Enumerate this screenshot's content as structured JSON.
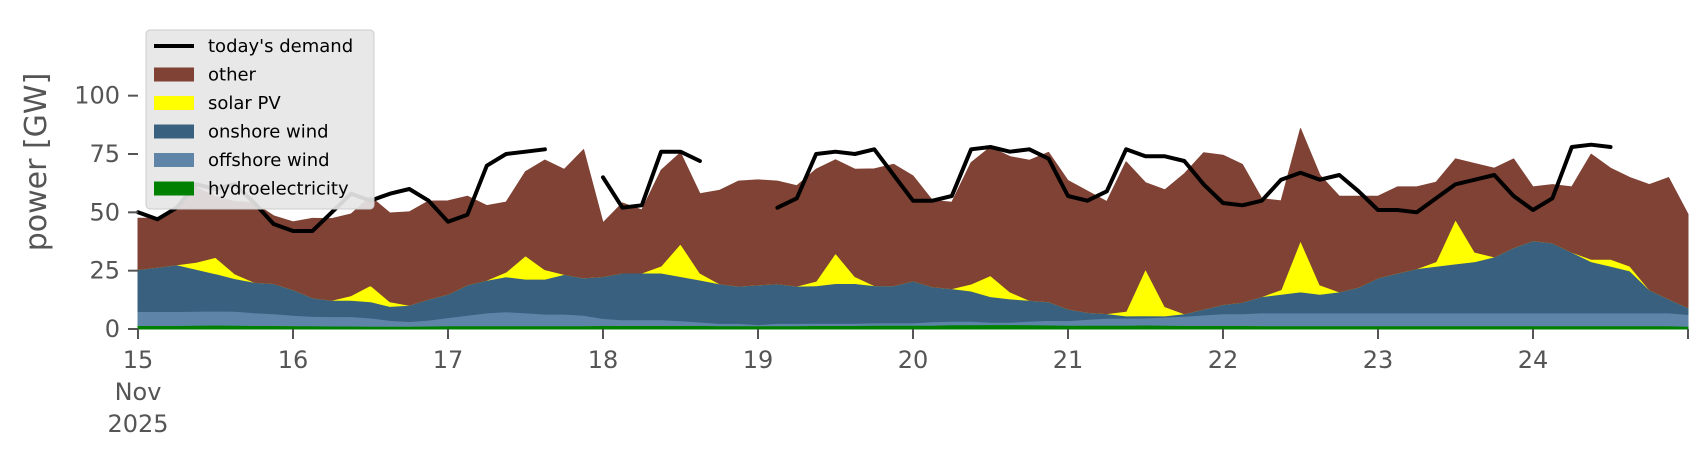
{
  "chart_data": {
    "type": "area",
    "ylabel": "power [GW]",
    "xlabel": "",
    "ylim": [
      0,
      120
    ],
    "yticks": [
      0,
      25,
      50,
      75,
      100
    ],
    "xlim": [
      "2025-11-15",
      "2025-11-25"
    ],
    "xticks": [
      {
        "date": "2025-11-15",
        "lines": [
          "15",
          "Nov",
          "2025"
        ]
      },
      {
        "date": "2025-11-16",
        "lines": [
          "16"
        ]
      },
      {
        "date": "2025-11-17",
        "lines": [
          "17"
        ]
      },
      {
        "date": "2025-11-18",
        "lines": [
          "18"
        ]
      },
      {
        "date": "2025-11-19",
        "lines": [
          "19"
        ]
      },
      {
        "date": "2025-11-20",
        "lines": [
          "20"
        ]
      },
      {
        "date": "2025-11-21",
        "lines": [
          "21"
        ]
      },
      {
        "date": "2025-11-22",
        "lines": [
          "22"
        ]
      },
      {
        "date": "2025-11-23",
        "lines": [
          "23"
        ]
      },
      {
        "date": "2025-11-24",
        "lines": [
          "24"
        ]
      }
    ],
    "grid": false,
    "legend_position": "top-left",
    "colors": {
      "demand": "#000000",
      "other": "#7f4234",
      "solar": "#ffff00",
      "onshore": "#3a6080",
      "offshore": "#5e85a8",
      "hydro": "#008000"
    },
    "legend": [
      {
        "key": "demand",
        "label": "today's demand",
        "kind": "line"
      },
      {
        "key": "other",
        "label": "other",
        "kind": "patch"
      },
      {
        "key": "solar",
        "label": "solar PV",
        "kind": "patch"
      },
      {
        "key": "onshore",
        "label": "onshore wind",
        "kind": "patch"
      },
      {
        "key": "offshore",
        "label": "offshore wind",
        "kind": "patch"
      },
      {
        "key": "hydro",
        "label": "hydroelectricity",
        "kind": "patch"
      }
    ],
    "stack_order": [
      "hydro",
      "offshore",
      "onshore",
      "solar",
      "other"
    ],
    "x": [
      "2025-11-15 00:00",
      "2025-11-15 03:00",
      "2025-11-15 06:00",
      "2025-11-15 09:00",
      "2025-11-15 12:00",
      "2025-11-15 15:00",
      "2025-11-15 18:00",
      "2025-11-15 21:00",
      "2025-11-16 00:00",
      "2025-11-16 03:00",
      "2025-11-16 06:00",
      "2025-11-16 09:00",
      "2025-11-16 12:00",
      "2025-11-16 15:00",
      "2025-11-16 18:00",
      "2025-11-16 21:00",
      "2025-11-17 00:00",
      "2025-11-17 03:00",
      "2025-11-17 06:00",
      "2025-11-17 09:00",
      "2025-11-17 12:00",
      "2025-11-17 15:00",
      "2025-11-17 18:00",
      "2025-11-17 21:00",
      "2025-11-18 00:00",
      "2025-11-18 03:00",
      "2025-11-18 06:00",
      "2025-11-18 09:00",
      "2025-11-18 12:00",
      "2025-11-18 15:00",
      "2025-11-18 18:00",
      "2025-11-18 21:00",
      "2025-11-19 00:00",
      "2025-11-19 03:00",
      "2025-11-19 06:00",
      "2025-11-19 09:00",
      "2025-11-19 12:00",
      "2025-11-19 15:00",
      "2025-11-19 18:00",
      "2025-11-19 21:00",
      "2025-11-20 00:00",
      "2025-11-20 03:00",
      "2025-11-20 06:00",
      "2025-11-20 09:00",
      "2025-11-20 12:00",
      "2025-11-20 15:00",
      "2025-11-20 18:00",
      "2025-11-20 21:00",
      "2025-11-21 00:00",
      "2025-11-21 03:00",
      "2025-11-21 06:00",
      "2025-11-21 09:00",
      "2025-11-21 12:00",
      "2025-11-21 15:00",
      "2025-11-21 18:00",
      "2025-11-21 21:00",
      "2025-11-22 00:00",
      "2025-11-22 03:00",
      "2025-11-22 06:00",
      "2025-11-22 09:00",
      "2025-11-22 12:00",
      "2025-11-22 15:00",
      "2025-11-22 18:00",
      "2025-11-22 21:00",
      "2025-11-23 00:00",
      "2025-11-23 03:00",
      "2025-11-23 06:00",
      "2025-11-23 09:00",
      "2025-11-23 12:00",
      "2025-11-23 15:00",
      "2025-11-23 18:00",
      "2025-11-23 21:00",
      "2025-11-24 00:00",
      "2025-11-24 03:00",
      "2025-11-24 06:00",
      "2025-11-24 09:00",
      "2025-11-24 12:00",
      "2025-11-24 15:00",
      "2025-11-24 18:00",
      "2025-11-24 21:00",
      "2025-11-25 00:00"
    ],
    "series": {
      "hydro": [
        1.5,
        1.5,
        1.5,
        1.6,
        1.7,
        1.6,
        1.5,
        1.5,
        1.4,
        1.4,
        1.3,
        1.3,
        1.2,
        1.2,
        1.2,
        1.3,
        1.4,
        1.4,
        1.4,
        1.4,
        1.4,
        1.4,
        1.4,
        1.4,
        1.5,
        1.5,
        1.5,
        1.5,
        1.5,
        1.5,
        1.4,
        1.4,
        1.4,
        1.4,
        1.4,
        1.5,
        1.5,
        1.5,
        1.6,
        1.6,
        1.6,
        1.6,
        1.8,
        1.8,
        1.9,
        1.9,
        1.8,
        1.7,
        1.6,
        1.6,
        1.6,
        1.6,
        1.7,
        1.6,
        1.5,
        1.5,
        1.5,
        1.5,
        1.4,
        1.4,
        1.4,
        1.4,
        1.4,
        1.4,
        1.4,
        1.4,
        1.4,
        1.4,
        1.4,
        1.4,
        1.4,
        1.4,
        1.4,
        1.4,
        1.4,
        1.4,
        1.4,
        1.4,
        1.4,
        1.4,
        1.2
      ],
      "offshore": [
        6,
        6,
        6,
        6,
        6,
        6,
        5.5,
        5,
        4.5,
        4,
        4,
        4,
        3.5,
        2.5,
        2,
        2.5,
        3.5,
        4.5,
        5.5,
        6,
        5.5,
        5,
        5,
        4.5,
        3,
        2.5,
        2.5,
        2.5,
        2,
        1.5,
        1,
        1,
        0.5,
        1,
        1,
        1,
        1,
        1,
        1,
        1,
        1,
        1.5,
        1.5,
        1.5,
        1,
        1,
        1.5,
        2,
        2,
        2.5,
        3,
        3,
        3,
        3.5,
        4,
        4.5,
        5,
        5,
        5.5,
        5.5,
        5.5,
        5.5,
        5.5,
        5.5,
        5.5,
        5.5,
        5.5,
        5.5,
        5.5,
        5.5,
        5.5,
        5.5,
        5.5,
        5.5,
        5.5,
        5.5,
        5.5,
        5.5,
        5.5,
        5.5,
        5
      ],
      "onshore": [
        18,
        19,
        20,
        18,
        16,
        14,
        13,
        13,
        11,
        8,
        7,
        7,
        7,
        6,
        7,
        9,
        10,
        13,
        14,
        15,
        14.5,
        15,
        17,
        16,
        18,
        20,
        20,
        20,
        19,
        18,
        17,
        16,
        17,
        17,
        16,
        16,
        17,
        17,
        16,
        16,
        18,
        15,
        14,
        13,
        11,
        10,
        9,
        8,
        5,
        3,
        2,
        1,
        1,
        0.5,
        1,
        2.5,
        4,
        5,
        7,
        8,
        9,
        8,
        9,
        11,
        15,
        17,
        19,
        20,
        21,
        22,
        24,
        28,
        31,
        30,
        26,
        22,
        20,
        18,
        10,
        6,
        3
      ],
      "solar": [
        0,
        0,
        0,
        3,
        7,
        2,
        0,
        0,
        0,
        0,
        0,
        2,
        7,
        2,
        0,
        0,
        0,
        0,
        0,
        2,
        10,
        4,
        0,
        0,
        0,
        0,
        0,
        3,
        14,
        3,
        0,
        0,
        0,
        0,
        0,
        2,
        13,
        3,
        0,
        0,
        0,
        0,
        0,
        3,
        9,
        3,
        0,
        0,
        0,
        0,
        0,
        2,
        20,
        4,
        0,
        0,
        0,
        0,
        0,
        2,
        22,
        4,
        0,
        0,
        0,
        0,
        0,
        2,
        19,
        4,
        0,
        0,
        0,
        0,
        0,
        1,
        3,
        2,
        0,
        0,
        0
      ],
      "other": [
        22,
        21,
        24,
        32,
        26,
        31,
        34,
        29,
        29,
        34,
        35,
        35,
        38,
        38,
        40,
        42,
        40,
        38,
        32,
        30,
        36,
        47,
        45,
        55,
        23,
        30,
        27,
        41,
        39,
        34,
        40,
        45,
        45,
        44,
        43,
        48,
        40,
        46,
        50,
        52,
        45,
        37,
        37,
        52,
        55,
        58,
        60,
        64,
        55,
        52,
        48,
        64,
        37,
        50,
        60,
        67,
        64,
        59,
        42,
        38,
        48,
        47,
        41,
        39,
        35,
        37,
        35,
        34,
        26,
        38,
        38,
        38,
        23,
        25,
        28,
        45,
        39,
        38,
        45,
        52,
        40
      ],
      "demand": [
        50,
        47,
        52,
        62,
        60,
        62,
        54,
        45,
        42,
        42,
        50,
        58,
        55,
        58,
        60,
        55,
        46,
        49,
        70,
        75,
        76,
        77,
        null,
        null,
        65,
        52,
        53,
        76,
        76,
        72,
        null,
        null,
        null,
        52,
        56,
        75,
        76,
        75,
        77,
        66,
        55,
        55,
        57,
        77,
        78,
        76,
        77,
        73,
        57,
        55,
        59,
        77,
        74,
        74,
        72,
        62,
        54,
        53,
        55,
        64,
        67,
        64,
        66,
        59,
        51,
        51,
        50,
        56,
        62,
        64,
        66,
        57,
        51,
        56,
        78,
        79,
        78,
        null,
        null,
        null,
        null
      ]
    }
  }
}
